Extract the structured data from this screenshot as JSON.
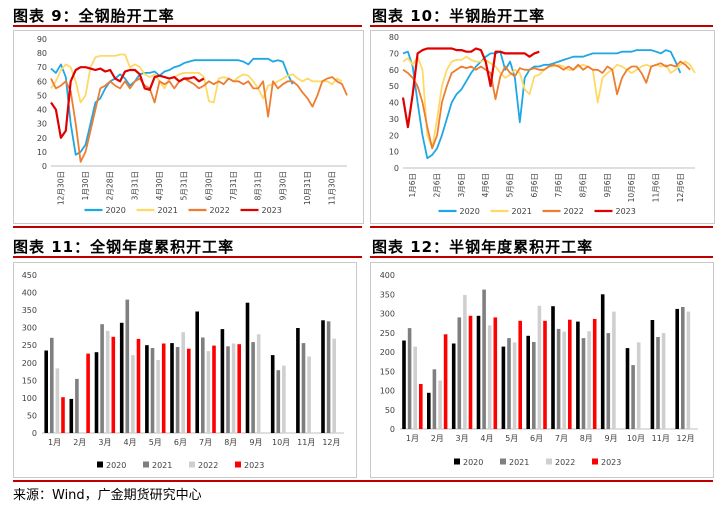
{
  "titles": {
    "c9": "图表 9：全钢胎开工率",
    "c10": "图表 10：半钢胎开工率",
    "c11": "图表 11：全钢年度累积开工率",
    "c12": "图表 12：半钢年度累积开工率"
  },
  "source": "来源：Wind，广金期货研究中心",
  "colors": {
    "2020": "#1ea7e4",
    "2021": "#ffd966",
    "2022": "#ed7d31",
    "2023": "#e00000",
    "bar2020": "#000000",
    "bar2021": "#7f7f7f",
    "bar2022": "#cfcfcf",
    "bar2023": "#ff0000",
    "rule": "#c00000"
  },
  "chart_data": [
    {
      "id": "c9",
      "type": "line",
      "ylim": [
        0,
        90
      ],
      "yticks": [
        0,
        10,
        20,
        30,
        40,
        50,
        60,
        70,
        80,
        90
      ],
      "xlabels": [
        "12月30日",
        "1月30日",
        "2月28日",
        "3月31日",
        "4月30日",
        "5月31日",
        "6月30日",
        "7月31日",
        "8月31日",
        "9月30日",
        "10月31日",
        "11月30日"
      ],
      "series": [
        {
          "name": "2020",
          "values": [
            69,
            66,
            72,
            63,
            30,
            8,
            10,
            15,
            30,
            45,
            48,
            55,
            60,
            62,
            65,
            62,
            57,
            60,
            65,
            66,
            66,
            67,
            64,
            67,
            68,
            70,
            71,
            73,
            74,
            75,
            75,
            75,
            75,
            75,
            75,
            75,
            75,
            75,
            75,
            74,
            72,
            76,
            76,
            76,
            76,
            74,
            75,
            74,
            65,
            58
          ]
        },
        {
          "name": "2021",
          "values": [
            55,
            60,
            68,
            72,
            70,
            60,
            45,
            50,
            70,
            77,
            78,
            78,
            78,
            78,
            79,
            79,
            70,
            72,
            70,
            65,
            63,
            65,
            60,
            55,
            62,
            63,
            65,
            66,
            66,
            66,
            66,
            63,
            46,
            45,
            62,
            63,
            62,
            60,
            63,
            65,
            64,
            60,
            55,
            48,
            57,
            58,
            60,
            62,
            64,
            65,
            62,
            60,
            62,
            60,
            60,
            60,
            60,
            58,
            62,
            60
          ]
        },
        {
          "name": "2022",
          "values": [
            62,
            55,
            57,
            60,
            53,
            30,
            3,
            10,
            25,
            40,
            55,
            57,
            60,
            57,
            55,
            60,
            55,
            60,
            62,
            57,
            55,
            45,
            60,
            58,
            60,
            55,
            60,
            62,
            60,
            58,
            55,
            57,
            60,
            58,
            60,
            58,
            62,
            60,
            60,
            58,
            60,
            55,
            55,
            60,
            35,
            60,
            55,
            58,
            60,
            60,
            57,
            52,
            48,
            42,
            50,
            60,
            62,
            63,
            60,
            58,
            50
          ]
        },
        {
          "name": "2023",
          "values": [
            45,
            40,
            20,
            25,
            60,
            68,
            70,
            70,
            69,
            68,
            69,
            67,
            68,
            62,
            60,
            67,
            68,
            68,
            65,
            55,
            54,
            63,
            64,
            63,
            62,
            63,
            60,
            62,
            62,
            63,
            60,
            62
          ]
        }
      ]
    },
    {
      "id": "c10",
      "type": "line",
      "ylim": [
        0,
        80
      ],
      "yticks": [
        0,
        10,
        20,
        30,
        40,
        50,
        60,
        70,
        80
      ],
      "xlabels": [
        "1月6日",
        "2月6日",
        "3月6日",
        "4月6日",
        "5月6日",
        "6月6日",
        "7月6日",
        "8月6日",
        "9月6日",
        "10月6日",
        "11月6日",
        "12月6日"
      ],
      "series": [
        {
          "name": "2020",
          "values": [
            70,
            71,
            62,
            40,
            20,
            6,
            8,
            12,
            20,
            30,
            40,
            45,
            48,
            53,
            58,
            62,
            65,
            68,
            70,
            70,
            71,
            60,
            65,
            55,
            28,
            55,
            60,
            62,
            62,
            63,
            63,
            64,
            65,
            66,
            67,
            68,
            68,
            68,
            69,
            70,
            70,
            70,
            70,
            70,
            70,
            71,
            71,
            71,
            72,
            72,
            72,
            72,
            71,
            70,
            72,
            71,
            65,
            58
          ]
        },
        {
          "name": "2021",
          "values": [
            65,
            67,
            63,
            68,
            60,
            20,
            12,
            30,
            50,
            60,
            65,
            66,
            66,
            68,
            66,
            65,
            65,
            66,
            64,
            62,
            58,
            55,
            57,
            60,
            58,
            48,
            45,
            56,
            57,
            60,
            62,
            62,
            63,
            62,
            60,
            60,
            62,
            63,
            62,
            60,
            40,
            55,
            58,
            60,
            63,
            62,
            60,
            58,
            60,
            62,
            63,
            62,
            63,
            62,
            63,
            58,
            60,
            63,
            65,
            63,
            58
          ]
        },
        {
          "name": "2022",
          "values": [
            60,
            58,
            55,
            50,
            40,
            25,
            12,
            20,
            40,
            50,
            58,
            60,
            62,
            61,
            62,
            60,
            62,
            60,
            58,
            42,
            56,
            62,
            58,
            56,
            61,
            60,
            60,
            61,
            60,
            60,
            62,
            63,
            62,
            60,
            62,
            60,
            63,
            60,
            62,
            60,
            60,
            58,
            62,
            60,
            45,
            55,
            60,
            62,
            62,
            58,
            52,
            62,
            63,
            64,
            62,
            63,
            62,
            65,
            63,
            60
          ]
        },
        {
          "name": "2023",
          "values": [
            43,
            25,
            45,
            70,
            72,
            73,
            73,
            73,
            73,
            73,
            73,
            72,
            72,
            71,
            71,
            73,
            72,
            65,
            50,
            71,
            71,
            70,
            70,
            70,
            70,
            70,
            68,
            70,
            71
          ]
        }
      ]
    },
    {
      "id": "c11",
      "type": "bar",
      "ylim": [
        0,
        450
      ],
      "yticks": [
        0,
        50,
        100,
        150,
        200,
        250,
        300,
        350,
        400,
        450
      ],
      "categories": [
        "1月",
        "2月",
        "3月",
        "4月",
        "5月",
        "6月",
        "7月",
        "8月",
        "9月",
        "10月",
        "11月",
        "12月"
      ],
      "series": [
        {
          "name": "2020",
          "values": [
            235,
            97,
            230,
            314,
            250,
            256,
            346,
            296,
            371,
            222,
            299,
            321
          ]
        },
        {
          "name": "2021",
          "values": [
            271,
            154,
            310,
            380,
            242,
            245,
            272,
            247,
            259,
            179,
            256,
            318
          ]
        },
        {
          "name": "2022",
          "values": [
            184,
            null,
            291,
            222,
            208,
            287,
            233,
            255,
            281,
            192,
            218,
            269
          ]
        },
        {
          "name": "2023",
          "values": [
            102,
            226,
            274,
            268,
            255,
            240,
            249,
            253,
            null,
            null,
            null,
            null
          ]
        }
      ]
    },
    {
      "id": "c12",
      "type": "bar",
      "ylim": [
        0,
        400
      ],
      "yticks": [
        0,
        50,
        100,
        150,
        200,
        250,
        300,
        350,
        400
      ],
      "categories": [
        "1月",
        "2月",
        "3月",
        "4月",
        "5月",
        "6月",
        "7月",
        "8月",
        "9月",
        "10月",
        "11月",
        "12月"
      ],
      "series": [
        {
          "name": "2020",
          "values": [
            230,
            94,
            222,
            294,
            214,
            242,
            319,
            279,
            350,
            210,
            283,
            312
          ]
        },
        {
          "name": "2021",
          "values": [
            262,
            155,
            290,
            362,
            236,
            226,
            260,
            236,
            249,
            166,
            239,
            317
          ]
        },
        {
          "name": "2022",
          "values": [
            214,
            126,
            348,
            269,
            225,
            320,
            253,
            254,
            305,
            225,
            249,
            305
          ]
        },
        {
          "name": "2023",
          "values": [
            117,
            246,
            294,
            290,
            281,
            281,
            284,
            286,
            null,
            null,
            null,
            null
          ]
        }
      ]
    }
  ]
}
